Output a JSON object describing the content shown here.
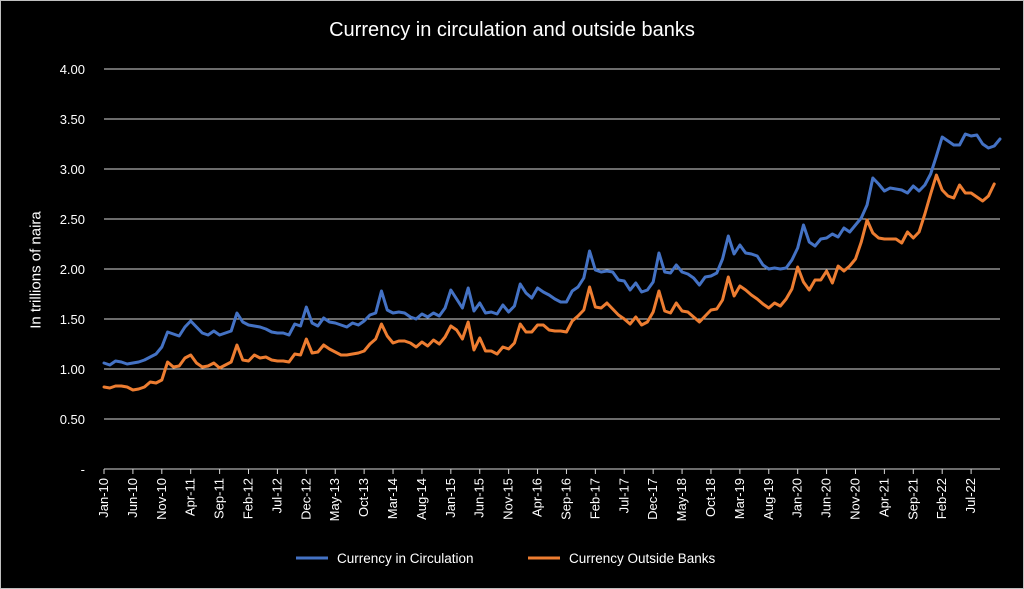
{
  "chart_data": {
    "type": "line",
    "title": "Currency in circulation and outside banks",
    "xlabel": "",
    "ylabel": "In trillions of naira",
    "ylim": [
      0,
      4
    ],
    "yticks": [
      "-",
      "0.50",
      "1.00",
      "1.50",
      "2.00",
      "2.50",
      "3.00",
      "3.50",
      "4.00"
    ],
    "x_start": "Jan-10",
    "x_ticks": [
      "Jan-10",
      "Jun-10",
      "Nov-10",
      "Apr-11",
      "Sep-11",
      "Feb-12",
      "Jul-12",
      "Dec-12",
      "May-13",
      "Oct-13",
      "Mar-14",
      "Aug-14",
      "Jan-15",
      "Jun-15",
      "Nov-15",
      "Apr-16",
      "Sep-16",
      "Feb-17",
      "Jul-17",
      "Dec-17",
      "May-18",
      "Oct-18",
      "Mar-19",
      "Aug-19",
      "Jan-20",
      "Jun-20",
      "Nov-20",
      "Apr-21",
      "Sep-21",
      "Feb-22",
      "Jul-22"
    ],
    "grid": true,
    "legend_position": "bottom",
    "series": [
      {
        "name": "Currency in Circulation",
        "color": "#4472c4",
        "values": [
          1.06,
          1.04,
          1.08,
          1.07,
          1.05,
          1.06,
          1.07,
          1.09,
          1.12,
          1.15,
          1.22,
          1.37,
          1.35,
          1.33,
          1.42,
          1.48,
          1.42,
          1.36,
          1.34,
          1.38,
          1.34,
          1.36,
          1.38,
          1.56,
          1.47,
          1.44,
          1.43,
          1.42,
          1.4,
          1.37,
          1.36,
          1.36,
          1.34,
          1.45,
          1.43,
          1.62,
          1.46,
          1.43,
          1.51,
          1.47,
          1.46,
          1.44,
          1.42,
          1.46,
          1.44,
          1.48,
          1.54,
          1.56,
          1.78,
          1.59,
          1.56,
          1.57,
          1.56,
          1.52,
          1.5,
          1.55,
          1.52,
          1.56,
          1.53,
          1.61,
          1.79,
          1.7,
          1.61,
          1.81,
          1.58,
          1.66,
          1.56,
          1.57,
          1.55,
          1.64,
          1.57,
          1.63,
          1.85,
          1.76,
          1.71,
          1.81,
          1.77,
          1.74,
          1.7,
          1.67,
          1.67,
          1.78,
          1.82,
          1.91,
          2.18,
          1.99,
          1.97,
          1.98,
          1.97,
          1.89,
          1.88,
          1.79,
          1.86,
          1.77,
          1.79,
          1.87,
          2.16,
          1.97,
          1.96,
          2.04,
          1.97,
          1.95,
          1.91,
          1.84,
          1.92,
          1.93,
          1.96,
          2.1,
          2.33,
          2.15,
          2.24,
          2.16,
          2.15,
          2.13,
          2.04,
          2.0,
          2.01,
          2.0,
          2.01,
          2.09,
          2.21,
          2.44,
          2.27,
          2.23,
          2.3,
          2.31,
          2.35,
          2.32,
          2.41,
          2.37,
          2.44,
          2.51,
          2.64,
          2.91,
          2.85,
          2.78,
          2.81,
          2.8,
          2.79,
          2.76,
          2.83,
          2.78,
          2.84,
          2.95,
          3.13,
          3.32,
          3.28,
          3.24,
          3.24,
          3.35,
          3.33,
          3.34,
          3.25,
          3.21,
          3.23,
          3.3
        ]
      },
      {
        "name": "Currency Outside Banks",
        "color": "#ed7d31",
        "values": [
          0.82,
          0.81,
          0.83,
          0.83,
          0.82,
          0.79,
          0.8,
          0.82,
          0.87,
          0.86,
          0.89,
          1.07,
          1.02,
          1.03,
          1.11,
          1.14,
          1.06,
          1.02,
          1.03,
          1.06,
          1.01,
          1.04,
          1.07,
          1.24,
          1.09,
          1.08,
          1.14,
          1.11,
          1.12,
          1.09,
          1.08,
          1.08,
          1.07,
          1.15,
          1.14,
          1.3,
          1.16,
          1.17,
          1.24,
          1.2,
          1.17,
          1.14,
          1.14,
          1.15,
          1.16,
          1.18,
          1.25,
          1.3,
          1.45,
          1.33,
          1.26,
          1.28,
          1.28,
          1.26,
          1.22,
          1.27,
          1.23,
          1.29,
          1.25,
          1.32,
          1.43,
          1.39,
          1.3,
          1.47,
          1.19,
          1.31,
          1.18,
          1.18,
          1.15,
          1.22,
          1.2,
          1.26,
          1.45,
          1.37,
          1.37,
          1.44,
          1.44,
          1.39,
          1.38,
          1.38,
          1.37,
          1.48,
          1.53,
          1.59,
          1.82,
          1.62,
          1.61,
          1.66,
          1.6,
          1.54,
          1.5,
          1.45,
          1.52,
          1.44,
          1.47,
          1.57,
          1.78,
          1.58,
          1.56,
          1.66,
          1.58,
          1.57,
          1.52,
          1.47,
          1.53,
          1.59,
          1.6,
          1.69,
          1.92,
          1.73,
          1.83,
          1.79,
          1.74,
          1.7,
          1.65,
          1.61,
          1.66,
          1.63,
          1.7,
          1.8,
          2.02,
          1.87,
          1.79,
          1.89,
          1.89,
          1.98,
          1.86,
          2.03,
          1.98,
          2.03,
          2.1,
          2.27,
          2.49,
          2.36,
          2.31,
          2.3,
          2.3,
          2.3,
          2.26,
          2.37,
          2.31,
          2.37,
          2.55,
          2.75,
          2.94,
          2.79,
          2.73,
          2.71,
          2.84,
          2.76,
          2.76,
          2.72,
          2.68,
          2.73,
          2.85
        ]
      }
    ]
  }
}
